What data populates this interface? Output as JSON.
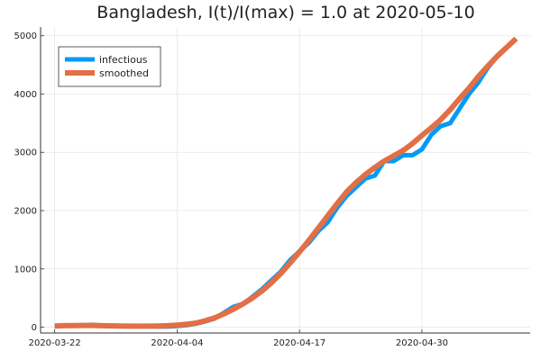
{
  "chart_data": {
    "type": "line",
    "title": "Bangladesh,  I(t)/I(max) = 1.0 at 2020-05-10",
    "xlabel": "",
    "ylabel": "",
    "x_start": "2020-03-22",
    "x_ticks": [
      "2020-03-22",
      "2020-04-04",
      "2020-04-17",
      "2020-04-30"
    ],
    "y_ticks": [
      0,
      1000,
      2000,
      3000,
      4000,
      5000
    ],
    "xlim": [
      "2020-03-22",
      "2020-05-10"
    ],
    "ylim": [
      -100,
      5150
    ],
    "grid": true,
    "legend_position": "top-left",
    "x": [
      "2020-03-22",
      "2020-03-23",
      "2020-03-24",
      "2020-03-25",
      "2020-03-26",
      "2020-03-27",
      "2020-03-28",
      "2020-03-29",
      "2020-03-30",
      "2020-03-31",
      "2020-04-01",
      "2020-04-02",
      "2020-04-03",
      "2020-04-04",
      "2020-04-05",
      "2020-04-06",
      "2020-04-07",
      "2020-04-08",
      "2020-04-09",
      "2020-04-10",
      "2020-04-11",
      "2020-04-12",
      "2020-04-13",
      "2020-04-14",
      "2020-04-15",
      "2020-04-16",
      "2020-04-17",
      "2020-04-18",
      "2020-04-19",
      "2020-04-20",
      "2020-04-21",
      "2020-04-22",
      "2020-04-23",
      "2020-04-24",
      "2020-04-25",
      "2020-04-26",
      "2020-04-27",
      "2020-04-28",
      "2020-04-29",
      "2020-04-30",
      "2020-05-01",
      "2020-05-02",
      "2020-05-03",
      "2020-05-04",
      "2020-05-05",
      "2020-05-06",
      "2020-05-07",
      "2020-05-08",
      "2020-05-09",
      "2020-05-10"
    ],
    "series": [
      {
        "name": "infectious",
        "color": "#009af9",
        "values": [
          20,
          25,
          30,
          30,
          40,
          30,
          25,
          20,
          20,
          15,
          15,
          10,
          10,
          20,
          35,
          60,
          100,
          150,
          250,
          350,
          400,
          520,
          650,
          800,
          950,
          1150,
          1300,
          1450,
          1650,
          1800,
          2050,
          2250,
          2400,
          2550,
          2600,
          2850,
          2850,
          2950,
          2950,
          3050,
          3300,
          3450,
          3500,
          3750,
          4000,
          4200,
          4450,
          4650,
          4800,
          4950
        ]
      },
      {
        "name": "smoothed",
        "color": "#e26f46",
        "values": [
          20,
          25,
          28,
          30,
          30,
          25,
          22,
          20,
          18,
          17,
          17,
          20,
          25,
          35,
          50,
          70,
          110,
          160,
          230,
          310,
          400,
          500,
          620,
          760,
          920,
          1100,
          1290,
          1490,
          1700,
          1910,
          2120,
          2320,
          2480,
          2620,
          2740,
          2850,
          2940,
          3030,
          3150,
          3290,
          3420,
          3560,
          3730,
          3920,
          4100,
          4300,
          4480,
          4650,
          4800,
          4950
        ]
      }
    ]
  }
}
